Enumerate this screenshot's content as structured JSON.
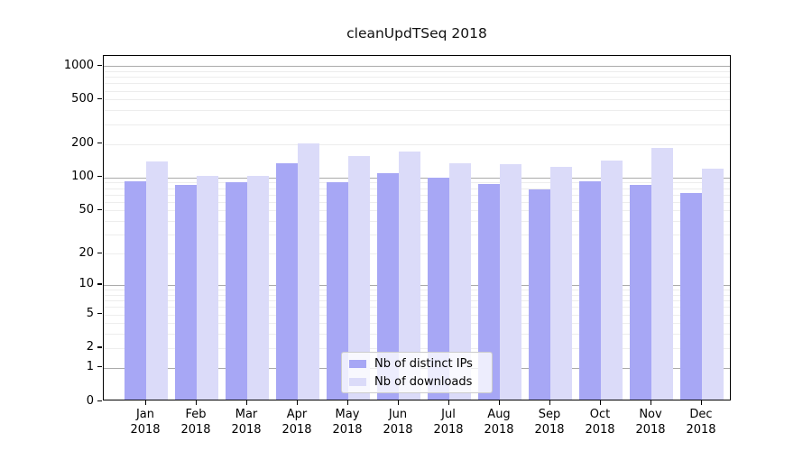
{
  "title": "cleanUpdTSeq 2018",
  "chart_data": {
    "type": "bar",
    "title": "cleanUpdTSeq 2018",
    "categories": [
      "Jan",
      "Feb",
      "Mar",
      "Apr",
      "May",
      "Jun",
      "Jul",
      "Aug",
      "Sep",
      "Oct",
      "Nov",
      "Dec"
    ],
    "x_sub_label": "2018",
    "series": [
      {
        "name": "Nb of distinct IPs",
        "color": "#a7a7f5",
        "values": [
          88,
          82,
          87,
          130,
          87,
          106,
          96,
          84,
          75,
          88,
          82,
          69
        ]
      },
      {
        "name": "Nb of downloads",
        "color": "#dbdbf9",
        "values": [
          135,
          100,
          99,
          194,
          149,
          164,
          130,
          127,
          119,
          137,
          176,
          116
        ]
      }
    ],
    "ylabel": "",
    "xlabel": "",
    "yscale": "log1p",
    "yticks": [
      0,
      1,
      2,
      5,
      10,
      20,
      50,
      100,
      200,
      500,
      1000
    ],
    "major_gridlines": [
      1,
      10,
      100,
      1000
    ],
    "ylim": [
      0,
      1230
    ],
    "grid": true,
    "legend_position": "bottom-center",
    "colors": {
      "distinct_ips": "#a7a7f5",
      "downloads": "#dbdbf9",
      "major_grid": "#ababab",
      "minor_grid": "#ededed",
      "frame": "#000000"
    }
  },
  "legend": {
    "items": [
      {
        "label": "Nb of distinct IPs"
      },
      {
        "label": "Nb of downloads"
      }
    ]
  }
}
